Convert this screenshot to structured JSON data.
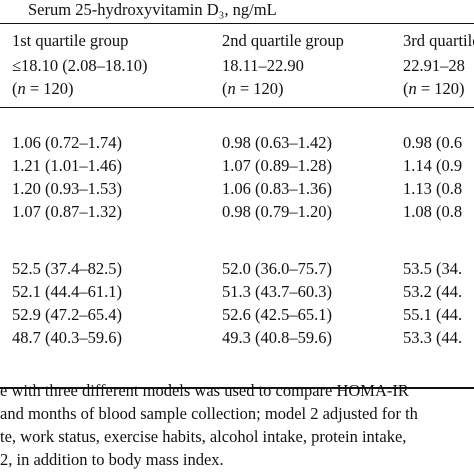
{
  "header_label": "Serum 25-hydroxyvitamin D₃, ng/mL",
  "columns": [
    {
      "title": "1st quartile group",
      "range": "≤18.10 (2.08–18.10)",
      "n_var": "n",
      "n_rest": " = 120)"
    },
    {
      "title": "2nd quartile group",
      "range": "18.11–22.90",
      "n_var": "n",
      "n_rest": " = 120)"
    },
    {
      "title": "3rd quartile",
      "range": "22.91–28",
      "n_var": "n",
      "n_rest": " = 120)"
    }
  ],
  "group1": [
    [
      "1.06 (0.72–1.74)",
      "0.98 (0.63–1.42)",
      "0.98 (0.6"
    ],
    [
      "1.21 (1.01–1.46)",
      "1.07 (0.89–1.28)",
      "1.14 (0.9"
    ],
    [
      "1.20 (0.93–1.53)",
      "1.06 (0.83–1.36)",
      "1.13 (0.8"
    ],
    [
      "1.07 (0.87–1.32)",
      "0.98 (0.79–1.20)",
      "1.08 (0.8"
    ]
  ],
  "group2": [
    [
      "52.5 (37.4–82.5)",
      "52.0 (36.0–75.7)",
      "53.5 (34."
    ],
    [
      "52.1 (44.4–61.1)",
      "51.3 (43.7–60.3)",
      "53.2 (44."
    ],
    [
      "52.9 (47.2–65.4)",
      "52.6 (42.5–65.1)",
      "55.1 (44."
    ],
    [
      "48.7 (40.3–59.6)",
      "49.3 (40.8–59.6)",
      "53.3 (44."
    ]
  ],
  "footnote_lines": [
    "e with three different models was used to compare HOMA-IR",
    "and months of blood sample collection; model 2 adjusted for th",
    "te, work status, exercise habits, alcohol intake, protein intake,",
    "2, in addition to body mass index."
  ]
}
